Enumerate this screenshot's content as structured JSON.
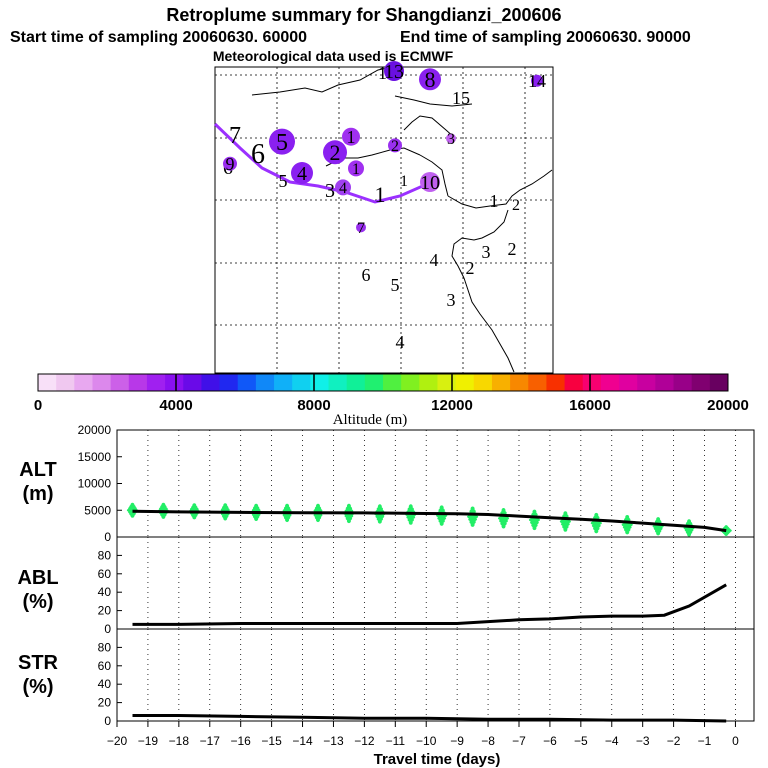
{
  "title": "Retroplume summary for Shangdianzi_200606",
  "start_label": "Start time of sampling 20060630. 60000",
  "end_label": "End time of sampling 20060630. 90000",
  "met_label": "Meteorological data used is ECMWF",
  "colorbar": {
    "label": "Altitude (m)",
    "ticks": [
      "0",
      "4000",
      "8000",
      "12000",
      "16000",
      "20000"
    ],
    "colors": [
      "#f8e0f8",
      "#f0c8f0",
      "#e8a8f0",
      "#dc88ec",
      "#cc60e8",
      "#b838e8",
      "#a020f0",
      "#8a10f0",
      "#6a0ae8",
      "#4010e8",
      "#2028f0",
      "#1058f8",
      "#1088f8",
      "#10b0f8",
      "#10d0f0",
      "#10f0e8",
      "#10f0c0",
      "#10f098",
      "#20f070",
      "#50f040",
      "#80f020",
      "#b0f010",
      "#d8f010",
      "#f0f000",
      "#f8d800",
      "#f8b000",
      "#f88800",
      "#f86000",
      "#f83000",
      "#f80040",
      "#f80070",
      "#f00090",
      "#e000a0",
      "#c800a0",
      "#b00098",
      "#980088",
      "#800070",
      "#680060"
    ]
  },
  "map": {
    "track_color": "#9b30ff",
    "labels": [
      {
        "t": "7",
        "c": "#7a1fd0",
        "r": 0
      },
      {
        "t": "6",
        "c": "#a040f0",
        "r": 0
      },
      {
        "t": "9",
        "c": "#9a2ff0",
        "r": 7
      },
      {
        "t": "6",
        "c": "#7a1fd0",
        "r": 0
      },
      {
        "t": "5",
        "c": "#8a20f0",
        "r": 13
      },
      {
        "t": "5",
        "c": "#9a30f0",
        "r": 0
      },
      {
        "t": "4",
        "c": "#8a20f0",
        "r": 11
      },
      {
        "t": "2",
        "c": "#8a20f0",
        "r": 12
      },
      {
        "t": "1",
        "c": "#a030f0",
        "r": 9
      },
      {
        "t": "1",
        "c": "#a030f0",
        "r": 8
      },
      {
        "t": "2",
        "c": "#9a30f0",
        "r": 7
      },
      {
        "t": "4",
        "c": "#a040f0",
        "r": 8
      },
      {
        "t": "3",
        "c": "#9a30f0",
        "r": 0
      },
      {
        "t": "1",
        "c": "#b050f0",
        "r": 0
      },
      {
        "t": "10",
        "c": "#c060f0",
        "r": 10
      },
      {
        "t": "12",
        "c": "#8a20f0",
        "r": 0
      },
      {
        "t": "13",
        "c": "#6a10e0",
        "r": 10
      },
      {
        "t": "8",
        "c": "#8a20f0",
        "r": 11
      },
      {
        "t": "15",
        "c": "#a030f0",
        "r": 0
      },
      {
        "t": "14",
        "c": "#8a20f0",
        "r": 6
      },
      {
        "t": "3",
        "c": "#c060f0",
        "r": 5
      },
      {
        "t": "7",
        "c": "#9a30f0",
        "r": 5
      },
      {
        "t": "1",
        "c": "#000000",
        "r": 0
      },
      {
        "t": "1",
        "c": "#d080f0",
        "r": 0
      },
      {
        "t": "2",
        "c": "#d080f0",
        "r": 0
      },
      {
        "t": "4",
        "c": "#d080f0",
        "r": 0
      },
      {
        "t": "3",
        "c": "#d080f0",
        "r": 0
      },
      {
        "t": "2",
        "c": "#d080f0",
        "r": 0
      },
      {
        "t": "2",
        "c": "#000000",
        "r": 0
      },
      {
        "t": "6",
        "c": "#a040f0",
        "r": 0
      },
      {
        "t": "5",
        "c": "#d080f0",
        "r": 0
      },
      {
        "t": "3",
        "c": "#000000",
        "r": 0
      },
      {
        "t": "4",
        "c": "#000000",
        "r": 0
      }
    ]
  },
  "chart_data": [
    {
      "type": "scatter",
      "panel": "ALT",
      "ylabel": "ALT (m)",
      "ylim": [
        0,
        20000
      ],
      "yticks": [
        0,
        5000,
        10000,
        15000,
        20000
      ],
      "mean_line": {
        "x": [
          -19.5,
          -18,
          -16,
          -14,
          -12,
          -10,
          -9,
          -8,
          -7,
          -6,
          -5,
          -4,
          -3,
          -2,
          -1,
          -0.3
        ],
        "y": [
          4800,
          4700,
          4600,
          4550,
          4500,
          4400,
          4350,
          4200,
          3900,
          3600,
          3300,
          3000,
          2600,
          2200,
          1800,
          1200
        ]
      },
      "spread": [
        {
          "x": -19.5,
          "center": 5000,
          "half": 1000
        },
        {
          "x": -18.5,
          "center": 4900,
          "half": 1100
        },
        {
          "x": -17.5,
          "center": 4800,
          "half": 1100
        },
        {
          "x": -16.5,
          "center": 4700,
          "half": 1200
        },
        {
          "x": -15.5,
          "center": 4600,
          "half": 1200
        },
        {
          "x": -14.5,
          "center": 4500,
          "half": 1300
        },
        {
          "x": -13.5,
          "center": 4500,
          "half": 1300
        },
        {
          "x": -12.5,
          "center": 4400,
          "half": 1400
        },
        {
          "x": -11.5,
          "center": 4300,
          "half": 1400
        },
        {
          "x": -10.5,
          "center": 4200,
          "half": 1500
        },
        {
          "x": -9.5,
          "center": 4000,
          "half": 1500
        },
        {
          "x": -8.5,
          "center": 3800,
          "half": 1500
        },
        {
          "x": -7.5,
          "center": 3500,
          "half": 1500
        },
        {
          "x": -6.5,
          "center": 3200,
          "half": 1500
        },
        {
          "x": -5.5,
          "center": 2900,
          "half": 1500
        },
        {
          "x": -4.5,
          "center": 2600,
          "half": 1500
        },
        {
          "x": -3.5,
          "center": 2300,
          "half": 1400
        },
        {
          "x": -2.5,
          "center": 2000,
          "half": 1300
        },
        {
          "x": -1.5,
          "center": 1700,
          "half": 1200
        },
        {
          "x": -0.3,
          "center": 1200,
          "half": 600
        }
      ],
      "point_color": "#22ee66"
    },
    {
      "type": "line",
      "panel": "ABL",
      "ylabel": "ABL (%)",
      "ylim": [
        0,
        100
      ],
      "yticks": [
        0,
        20,
        40,
        60,
        80
      ],
      "x": [
        -19.5,
        -18,
        -16,
        -14,
        -12,
        -10,
        -9,
        -8,
        -7,
        -6,
        -5,
        -4,
        -3,
        -2.3,
        -1.5,
        -0.3
      ],
      "y": [
        5,
        5,
        6,
        6,
        6,
        6,
        6,
        8,
        10,
        11,
        13,
        14,
        14,
        15,
        25,
        48
      ]
    },
    {
      "type": "line",
      "panel": "STR",
      "ylabel": "STR (%)",
      "ylim": [
        0,
        100
      ],
      "yticks": [
        0,
        20,
        40,
        60,
        80
      ],
      "x": [
        -19.5,
        -18,
        -16,
        -14,
        -12,
        -10,
        -8,
        -6,
        -4,
        -2,
        -0.3
      ],
      "y": [
        6,
        6,
        5,
        4,
        3,
        3,
        2,
        2,
        1,
        1,
        0
      ],
      "xlabel": "Travel time (days)",
      "xticks": [
        "−20",
        "−19",
        "−18",
        "−17",
        "−16",
        "−15",
        "−14",
        "−13",
        "−12",
        "−11",
        "−10",
        "−9",
        "−8",
        "−7",
        "−6",
        "−5",
        "−4",
        "−3",
        "−2",
        "−1",
        "0"
      ]
    }
  ]
}
